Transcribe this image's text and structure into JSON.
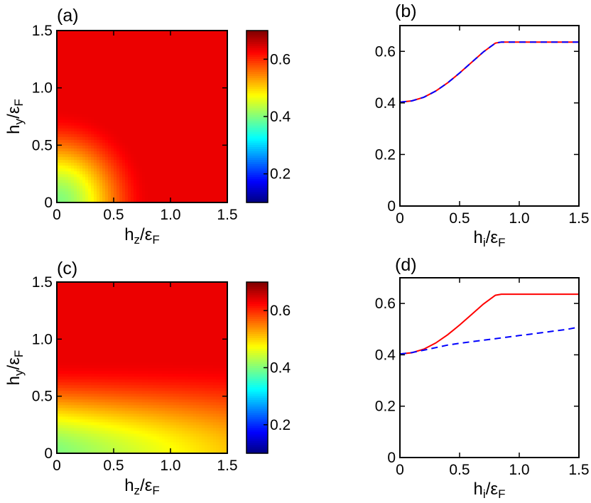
{
  "colormap": {
    "name": "jet",
    "stops": [
      "#00007f",
      "#0000ff",
      "#007fff",
      "#00ffff",
      "#7fff7f",
      "#ffff00",
      "#ff7f00",
      "#ff0000",
      "#7f0000"
    ]
  },
  "chart_data": [
    {
      "panel": "(a)",
      "type": "heatmap",
      "xlabel": {
        "main": "h",
        "sub": "z",
        "den": "ε",
        "densub": "F"
      },
      "ylabel": {
        "main": "h",
        "sub": "y",
        "den": "ε",
        "densub": "F"
      },
      "xlim": [
        0,
        1.5
      ],
      "ylim": [
        0,
        1.5
      ],
      "xticks": [
        "0",
        "0.5",
        "1.0",
        "1.5"
      ],
      "yticks": [
        "0",
        "0.5",
        "1.0",
        "1.5"
      ],
      "colorbar": {
        "range": [
          0.1,
          0.7
        ],
        "ticks": [
          "0.2",
          "0.4",
          "0.6"
        ]
      },
      "field": {
        "model": "radial",
        "base": 0.4,
        "plateau": 0.636,
        "h_sat": 0.82
      }
    },
    {
      "panel": "(b)",
      "type": "line",
      "xlabel": {
        "main": "h",
        "sub": "i",
        "den": "ε",
        "densub": "F"
      },
      "ylabel": null,
      "xlim": [
        0,
        1.5
      ],
      "ylim": [
        0,
        0.7
      ],
      "xticks": [
        "0",
        "0.5",
        "1.0",
        "1.5"
      ],
      "yticks": [
        "0",
        "0.2",
        "0.4",
        "0.6"
      ],
      "series": [
        {
          "color": "#ff0000",
          "dash": "solid",
          "x": [
            0,
            0.1,
            0.2,
            0.3,
            0.4,
            0.5,
            0.6,
            0.7,
            0.8,
            0.85,
            0.9,
            1.0,
            1.1,
            1.2,
            1.3,
            1.4,
            1.5
          ],
          "y": [
            0.403,
            0.408,
            0.422,
            0.446,
            0.478,
            0.516,
            0.557,
            0.598,
            0.632,
            0.636,
            0.636,
            0.636,
            0.636,
            0.636,
            0.636,
            0.636,
            0.636
          ]
        },
        {
          "color": "#0000ff",
          "dash": "dashed",
          "x": [
            0,
            0.1,
            0.2,
            0.3,
            0.4,
            0.5,
            0.6,
            0.7,
            0.8,
            0.85,
            0.9,
            1.0,
            1.1,
            1.2,
            1.3,
            1.4,
            1.5
          ],
          "y": [
            0.403,
            0.408,
            0.422,
            0.446,
            0.478,
            0.516,
            0.557,
            0.598,
            0.632,
            0.636,
            0.636,
            0.636,
            0.636,
            0.636,
            0.636,
            0.636,
            0.636
          ]
        }
      ]
    },
    {
      "panel": "(c)",
      "type": "heatmap",
      "xlabel": {
        "main": "h",
        "sub": "z",
        "den": "ε",
        "densub": "F"
      },
      "ylabel": {
        "main": "h",
        "sub": "y",
        "den": "ε",
        "densub": "F"
      },
      "xlim": [
        0,
        1.5
      ],
      "ylim": [
        0,
        1.5
      ],
      "xticks": [
        "0",
        "0.5",
        "1.0",
        "1.5"
      ],
      "yticks": [
        "0",
        "0.5",
        "1.0",
        "1.5"
      ],
      "colorbar": {
        "range": [
          0.1,
          0.7
        ],
        "ticks": [
          "0.2",
          "0.4",
          "0.6"
        ]
      },
      "field": {
        "model": "anisotropic",
        "base": 0.4,
        "plateau": 0.636,
        "h_sat": 0.82,
        "z_slope": 0.072
      }
    },
    {
      "panel": "(d)",
      "type": "line",
      "xlabel": {
        "main": "h",
        "sub": "i",
        "den": "ε",
        "densub": "F"
      },
      "ylabel": null,
      "xlim": [
        0,
        1.5
      ],
      "ylim": [
        0,
        0.7
      ],
      "xticks": [
        "0",
        "0.5",
        "1.0",
        "1.5"
      ],
      "yticks": [
        "0",
        "0.2",
        "0.4",
        "0.6"
      ],
      "series": [
        {
          "color": "#ff0000",
          "dash": "solid",
          "x": [
            0,
            0.1,
            0.2,
            0.3,
            0.4,
            0.5,
            0.6,
            0.7,
            0.8,
            0.85,
            0.9,
            1.0,
            1.1,
            1.2,
            1.3,
            1.4,
            1.5
          ],
          "y": [
            0.403,
            0.408,
            0.422,
            0.446,
            0.478,
            0.516,
            0.557,
            0.598,
            0.632,
            0.636,
            0.636,
            0.636,
            0.636,
            0.636,
            0.636,
            0.636,
            0.636
          ]
        },
        {
          "color": "#0000ff",
          "dash": "dashed",
          "x": [
            0,
            0.1,
            0.2,
            0.3,
            0.4,
            0.5,
            0.6,
            0.7,
            0.8,
            0.9,
            1.0,
            1.1,
            1.2,
            1.3,
            1.4,
            1.5
          ],
          "y": [
            0.403,
            0.409,
            0.418,
            0.428,
            0.438,
            0.445,
            0.451,
            0.457,
            0.463,
            0.469,
            0.475,
            0.481,
            0.487,
            0.493,
            0.499,
            0.508
          ]
        }
      ]
    }
  ]
}
